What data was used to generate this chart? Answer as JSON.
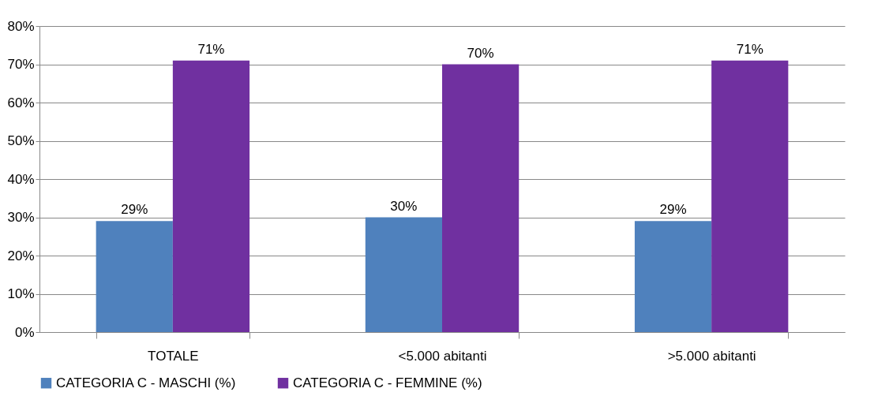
{
  "chart_data": {
    "type": "bar",
    "categories": [
      "TOTALE",
      "<5.000 abitanti",
      ">5.000 abitanti"
    ],
    "series": [
      {
        "name": "CATEGORIA C - MASCHI (%)",
        "color": "#4f81bd",
        "values": [
          29,
          30,
          29
        ],
        "value_labels": [
          "29%",
          "30%",
          "29%"
        ]
      },
      {
        "name": "CATEGORIA C - FEMMINE (%)",
        "color": "#7030a0",
        "values": [
          71,
          70,
          71
        ],
        "value_labels": [
          "71%",
          "70%",
          "71%"
        ]
      }
    ],
    "ylim": [
      0,
      80
    ],
    "yticks": [
      {
        "value": 0,
        "label": "0%"
      },
      {
        "value": 10,
        "label": "10%"
      },
      {
        "value": 20,
        "label": "20%"
      },
      {
        "value": 30,
        "label": "30%"
      },
      {
        "value": 40,
        "label": "40%"
      },
      {
        "value": 50,
        "label": "50%"
      },
      {
        "value": 60,
        "label": "60%"
      },
      {
        "value": 70,
        "label": "70%"
      },
      {
        "value": 80,
        "label": "80%"
      }
    ],
    "grid": "y",
    "legend": "bottom"
  }
}
